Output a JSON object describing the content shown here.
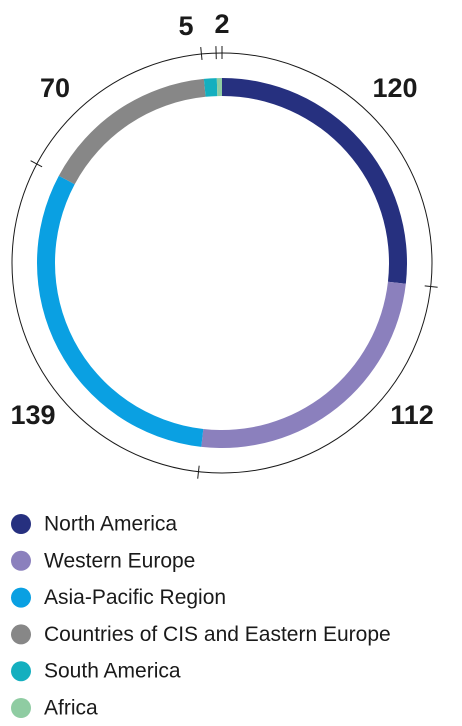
{
  "chart_data": {
    "type": "donut",
    "categories": [
      "North America",
      "Western Europe",
      "Asia-Pacific Region",
      "Countries of CIS and Eastern Europe",
      "South America",
      "Africa"
    ],
    "values": [
      120,
      112,
      139,
      70,
      5,
      2
    ],
    "colors": [
      "#26307f",
      "#8b80bd",
      "#0aa0e2",
      "#878787",
      "#14afbf",
      "#8fcca2"
    ]
  }
}
